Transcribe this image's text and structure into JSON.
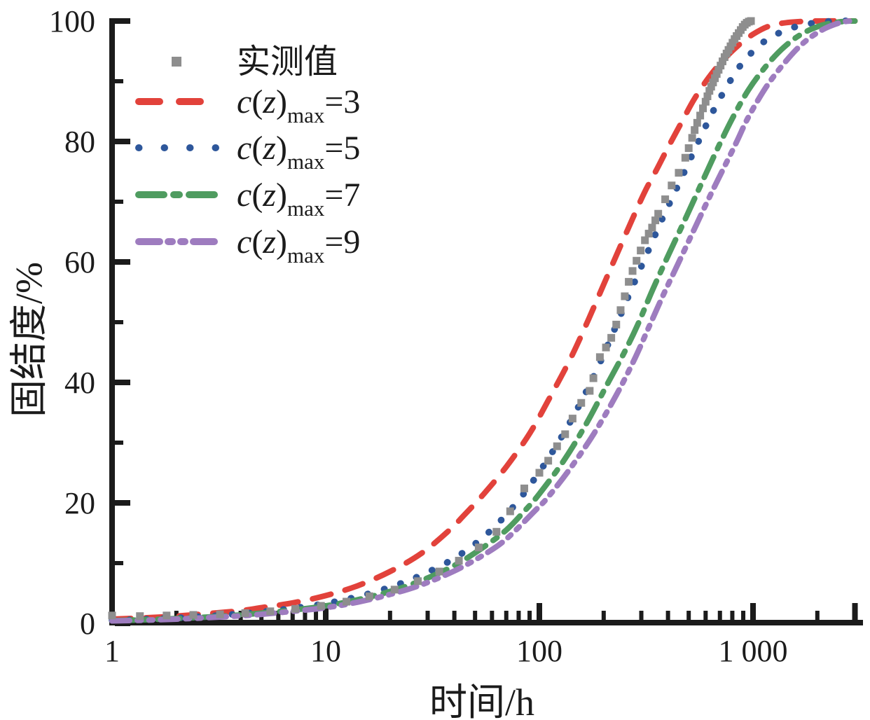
{
  "colors": {
    "axis": "#1b1b1b",
    "background": "#ffffff",
    "measured": "#8e8e8e",
    "cz3": "#e2423b",
    "cz5": "#2e579b",
    "cz7": "#4f9c60",
    "cz9": "#9e7cbf"
  },
  "axes": {
    "x": {
      "title": "时间/h",
      "scale": "log",
      "range": [
        1,
        3000
      ],
      "major_ticks": [
        {
          "value": 1,
          "label": "1"
        },
        {
          "value": 10,
          "label": "10"
        },
        {
          "value": 100,
          "label": "100"
        },
        {
          "value": 1000,
          "label": "1 000"
        },
        {
          "value": 3000,
          "label": ""
        }
      ],
      "minor_ticks": [
        2,
        3,
        4,
        5,
        6,
        7,
        8,
        9,
        20,
        30,
        40,
        50,
        60,
        70,
        80,
        90,
        200,
        300,
        400,
        500,
        600,
        700,
        800,
        900,
        2000
      ]
    },
    "y": {
      "title": "固结度/%",
      "scale": "linear",
      "range": [
        0,
        100
      ],
      "major_ticks": [
        {
          "value": 0,
          "label": "0"
        },
        {
          "value": 20,
          "label": "20"
        },
        {
          "value": 40,
          "label": "40"
        },
        {
          "value": 60,
          "label": "60"
        },
        {
          "value": 80,
          "label": "80"
        },
        {
          "value": 100,
          "label": "100"
        }
      ],
      "minor_ticks": [
        10,
        30,
        50,
        70,
        90
      ]
    }
  },
  "legend": {
    "items": [
      {
        "kind": "marker",
        "label": "实测值",
        "color": "#8e8e8e"
      },
      {
        "kind": "line",
        "style": "dashed",
        "color": "#e2423b",
        "label": {
          "main": "c(z)",
          "sub": "max",
          "value": "=3"
        }
      },
      {
        "kind": "line",
        "style": "dotted",
        "color": "#2e579b",
        "label": {
          "main": "c(z)",
          "sub": "max",
          "value": "=5"
        }
      },
      {
        "kind": "line",
        "style": "dashdot",
        "color": "#4f9c60",
        "label": {
          "main": "c(z)",
          "sub": "max",
          "value": "=7"
        }
      },
      {
        "kind": "line",
        "style": "dashdotdot",
        "color": "#9e7cbf",
        "label": {
          "main": "c(z)",
          "sub": "max",
          "value": "=9"
        }
      }
    ]
  },
  "chart_data": {
    "type": "line",
    "title": "",
    "xlabel": "时间/h",
    "ylabel": "固结度/%",
    "xscale": "log",
    "xlim": [
      1,
      3000
    ],
    "ylim": [
      0,
      100
    ],
    "grid": false,
    "legend_position": "upper-left",
    "measured_series": {
      "name": "实测值",
      "marker": "square",
      "color": "#8e8e8e",
      "points": [
        [
          1,
          1.3
        ],
        [
          1.35,
          1.2
        ],
        [
          1.8,
          1.3
        ],
        [
          2.4,
          1.4
        ],
        [
          3.2,
          1.5
        ],
        [
          4.2,
          1.7
        ],
        [
          5.5,
          2
        ],
        [
          7.2,
          2.4
        ],
        [
          9.5,
          2.9
        ],
        [
          12.5,
          3.6
        ],
        [
          16,
          4.5
        ],
        [
          21,
          5.6
        ],
        [
          27,
          7
        ],
        [
          34,
          8.6
        ],
        [
          42,
          10.4
        ],
        [
          52,
          12.6
        ],
        [
          63,
          15.2
        ],
        [
          73,
          18.6
        ],
        [
          85,
          22.4
        ],
        [
          100,
          25
        ],
        [
          110,
          27
        ],
        [
          121,
          29.4
        ],
        [
          132,
          31.4
        ],
        [
          143,
          34
        ],
        [
          157,
          36.6
        ],
        [
          172,
          38.6
        ],
        [
          179,
          40.7
        ],
        [
          192,
          44.2
        ],
        [
          205,
          45.8
        ],
        [
          217,
          47.4
        ],
        [
          229,
          49.6
        ],
        [
          240,
          52
        ],
        [
          251,
          54.3
        ],
        [
          262,
          56.7
        ],
        [
          273,
          58.5
        ],
        [
          285,
          60.2
        ],
        [
          298,
          61.9
        ],
        [
          312,
          63.6
        ],
        [
          325,
          64.7
        ],
        [
          337,
          65.7
        ],
        [
          349,
          66.9
        ],
        [
          360,
          68
        ],
        [
          388,
          70.4
        ],
        [
          416,
          72.7
        ],
        [
          449,
          74.8
        ],
        [
          482,
          77.3
        ],
        [
          500,
          78.9
        ],
        [
          519,
          80.6
        ],
        [
          533,
          81.9
        ],
        [
          548,
          83.1
        ],
        [
          566,
          84.3
        ],
        [
          583,
          85.5
        ],
        [
          600,
          86.6
        ],
        [
          612,
          87.5
        ],
        [
          625,
          88.4
        ],
        [
          637,
          89.1
        ],
        [
          650,
          89.8
        ],
        [
          663,
          90.5
        ],
        [
          676,
          91.2
        ],
        [
          690,
          91.9
        ],
        [
          705,
          92.6
        ],
        [
          720,
          93.3
        ],
        [
          736,
          94
        ],
        [
          752,
          94.6
        ],
        [
          768,
          95.2
        ],
        [
          785,
          95.8
        ],
        [
          802,
          96.4
        ],
        [
          820,
          97
        ],
        [
          838,
          97.5
        ],
        [
          857,
          98
        ],
        [
          876,
          98.5
        ],
        [
          895,
          99
        ],
        [
          915,
          99.4
        ],
        [
          935,
          99.7
        ],
        [
          956,
          99.9
        ],
        [
          978,
          100
        ]
      ]
    },
    "series": [
      {
        "name": "c(z)max=3",
        "style": "dashed",
        "color": "#e2423b",
        "points": [
          [
            1,
            0.7
          ],
          [
            1.4,
            0.9
          ],
          [
            2,
            1.2
          ],
          [
            3,
            1.7
          ],
          [
            4,
            2.1
          ],
          [
            5,
            2.6
          ],
          [
            7,
            3.4
          ],
          [
            10,
            4.6
          ],
          [
            14,
            6.2
          ],
          [
            20,
            8.6
          ],
          [
            28,
            11.6
          ],
          [
            38,
            15.5
          ],
          [
            44,
            17.8
          ],
          [
            55,
            21.5
          ],
          [
            70,
            26
          ],
          [
            90,
            31.5
          ],
          [
            110,
            37
          ],
          [
            140,
            44
          ],
          [
            170,
            50.5
          ],
          [
            210,
            58
          ],
          [
            260,
            65.5
          ],
          [
            310,
            71.5
          ],
          [
            350,
            75
          ],
          [
            400,
            79
          ],
          [
            460,
            83
          ],
          [
            530,
            87
          ],
          [
            620,
            90.6
          ],
          [
            720,
            93.4
          ],
          [
            850,
            95.9
          ],
          [
            1000,
            97.8
          ],
          [
            1200,
            99.2
          ],
          [
            1500,
            99.8
          ],
          [
            2000,
            100
          ],
          [
            3000,
            100
          ]
        ]
      },
      {
        "name": "c(z)max=5",
        "style": "dotted",
        "color": "#2e579b",
        "points": [
          [
            1,
            0.5
          ],
          [
            1.5,
            0.7
          ],
          [
            2,
            0.9
          ],
          [
            3,
            1.25
          ],
          [
            4,
            1.6
          ],
          [
            5,
            1.9
          ],
          [
            7,
            2.5
          ],
          [
            10,
            3.3
          ],
          [
            14,
            4.4
          ],
          [
            20,
            6
          ],
          [
            28,
            8
          ],
          [
            40,
            10.8
          ],
          [
            55,
            14.4
          ],
          [
            74,
            19
          ],
          [
            95,
            24
          ],
          [
            120,
            29.5
          ],
          [
            150,
            35.5
          ],
          [
            185,
            42
          ],
          [
            226,
            49
          ],
          [
            270,
            55.5
          ],
          [
            320,
            61.5
          ],
          [
            380,
            67.5
          ],
          [
            450,
            73
          ],
          [
            547,
            79.5
          ],
          [
            650,
            85
          ],
          [
            780,
            90
          ],
          [
            900,
            93.2
          ],
          [
            1100,
            96.3
          ],
          [
            1400,
            98.4
          ],
          [
            1800,
            99.5
          ],
          [
            2400,
            100
          ],
          [
            3000,
            100
          ]
        ]
      },
      {
        "name": "c(z)max=7",
        "style": "dashdot",
        "color": "#4f9c60",
        "points": [
          [
            1,
            0.45
          ],
          [
            1.5,
            0.62
          ],
          [
            2,
            0.8
          ],
          [
            3,
            1.1
          ],
          [
            4,
            1.4
          ],
          [
            5,
            1.7
          ],
          [
            7,
            2.2
          ],
          [
            10,
            2.9
          ],
          [
            14,
            3.9
          ],
          [
            20,
            5.3
          ],
          [
            28,
            7.1
          ],
          [
            40,
            9.6
          ],
          [
            55,
            12.7
          ],
          [
            70,
            15.5
          ],
          [
            86,
            18.8
          ],
          [
            100,
            21.5
          ],
          [
            130,
            27
          ],
          [
            165,
            33
          ],
          [
            210,
            40
          ],
          [
            250,
            45
          ],
          [
            288,
            49.5
          ],
          [
            340,
            55.5
          ],
          [
            400,
            61
          ],
          [
            480,
            67
          ],
          [
            570,
            72.8
          ],
          [
            686,
            79
          ],
          [
            800,
            83.8
          ],
          [
            950,
            88.5
          ],
          [
            1150,
            92.5
          ],
          [
            1400,
            95.7
          ],
          [
            1700,
            97.9
          ],
          [
            2100,
            99.3
          ],
          [
            2600,
            99.9
          ],
          [
            3000,
            100
          ]
        ]
      },
      {
        "name": "c(z)max=9",
        "style": "dashdotdot",
        "color": "#9e7cbf",
        "points": [
          [
            1,
            0.4
          ],
          [
            1.5,
            0.55
          ],
          [
            2,
            0.7
          ],
          [
            3,
            1
          ],
          [
            4,
            1.25
          ],
          [
            5,
            1.5
          ],
          [
            7,
            2
          ],
          [
            10,
            2.6
          ],
          [
            14,
            3.5
          ],
          [
            20,
            4.8
          ],
          [
            28,
            6.4
          ],
          [
            40,
            8.7
          ],
          [
            55,
            11.4
          ],
          [
            70,
            14
          ],
          [
            96,
            18.8
          ],
          [
            110,
            21
          ],
          [
            140,
            25.8
          ],
          [
            180,
            31.5
          ],
          [
            230,
            38
          ],
          [
            280,
            44
          ],
          [
            322,
            48.8
          ],
          [
            380,
            54.5
          ],
          [
            450,
            60
          ],
          [
            540,
            66
          ],
          [
            650,
            72
          ],
          [
            827,
            79.5
          ],
          [
            950,
            84
          ],
          [
            1150,
            89
          ],
          [
            1400,
            93
          ],
          [
            1700,
            96.2
          ],
          [
            2100,
            98.5
          ],
          [
            2600,
            99.8
          ],
          [
            3000,
            100
          ]
        ]
      }
    ]
  }
}
